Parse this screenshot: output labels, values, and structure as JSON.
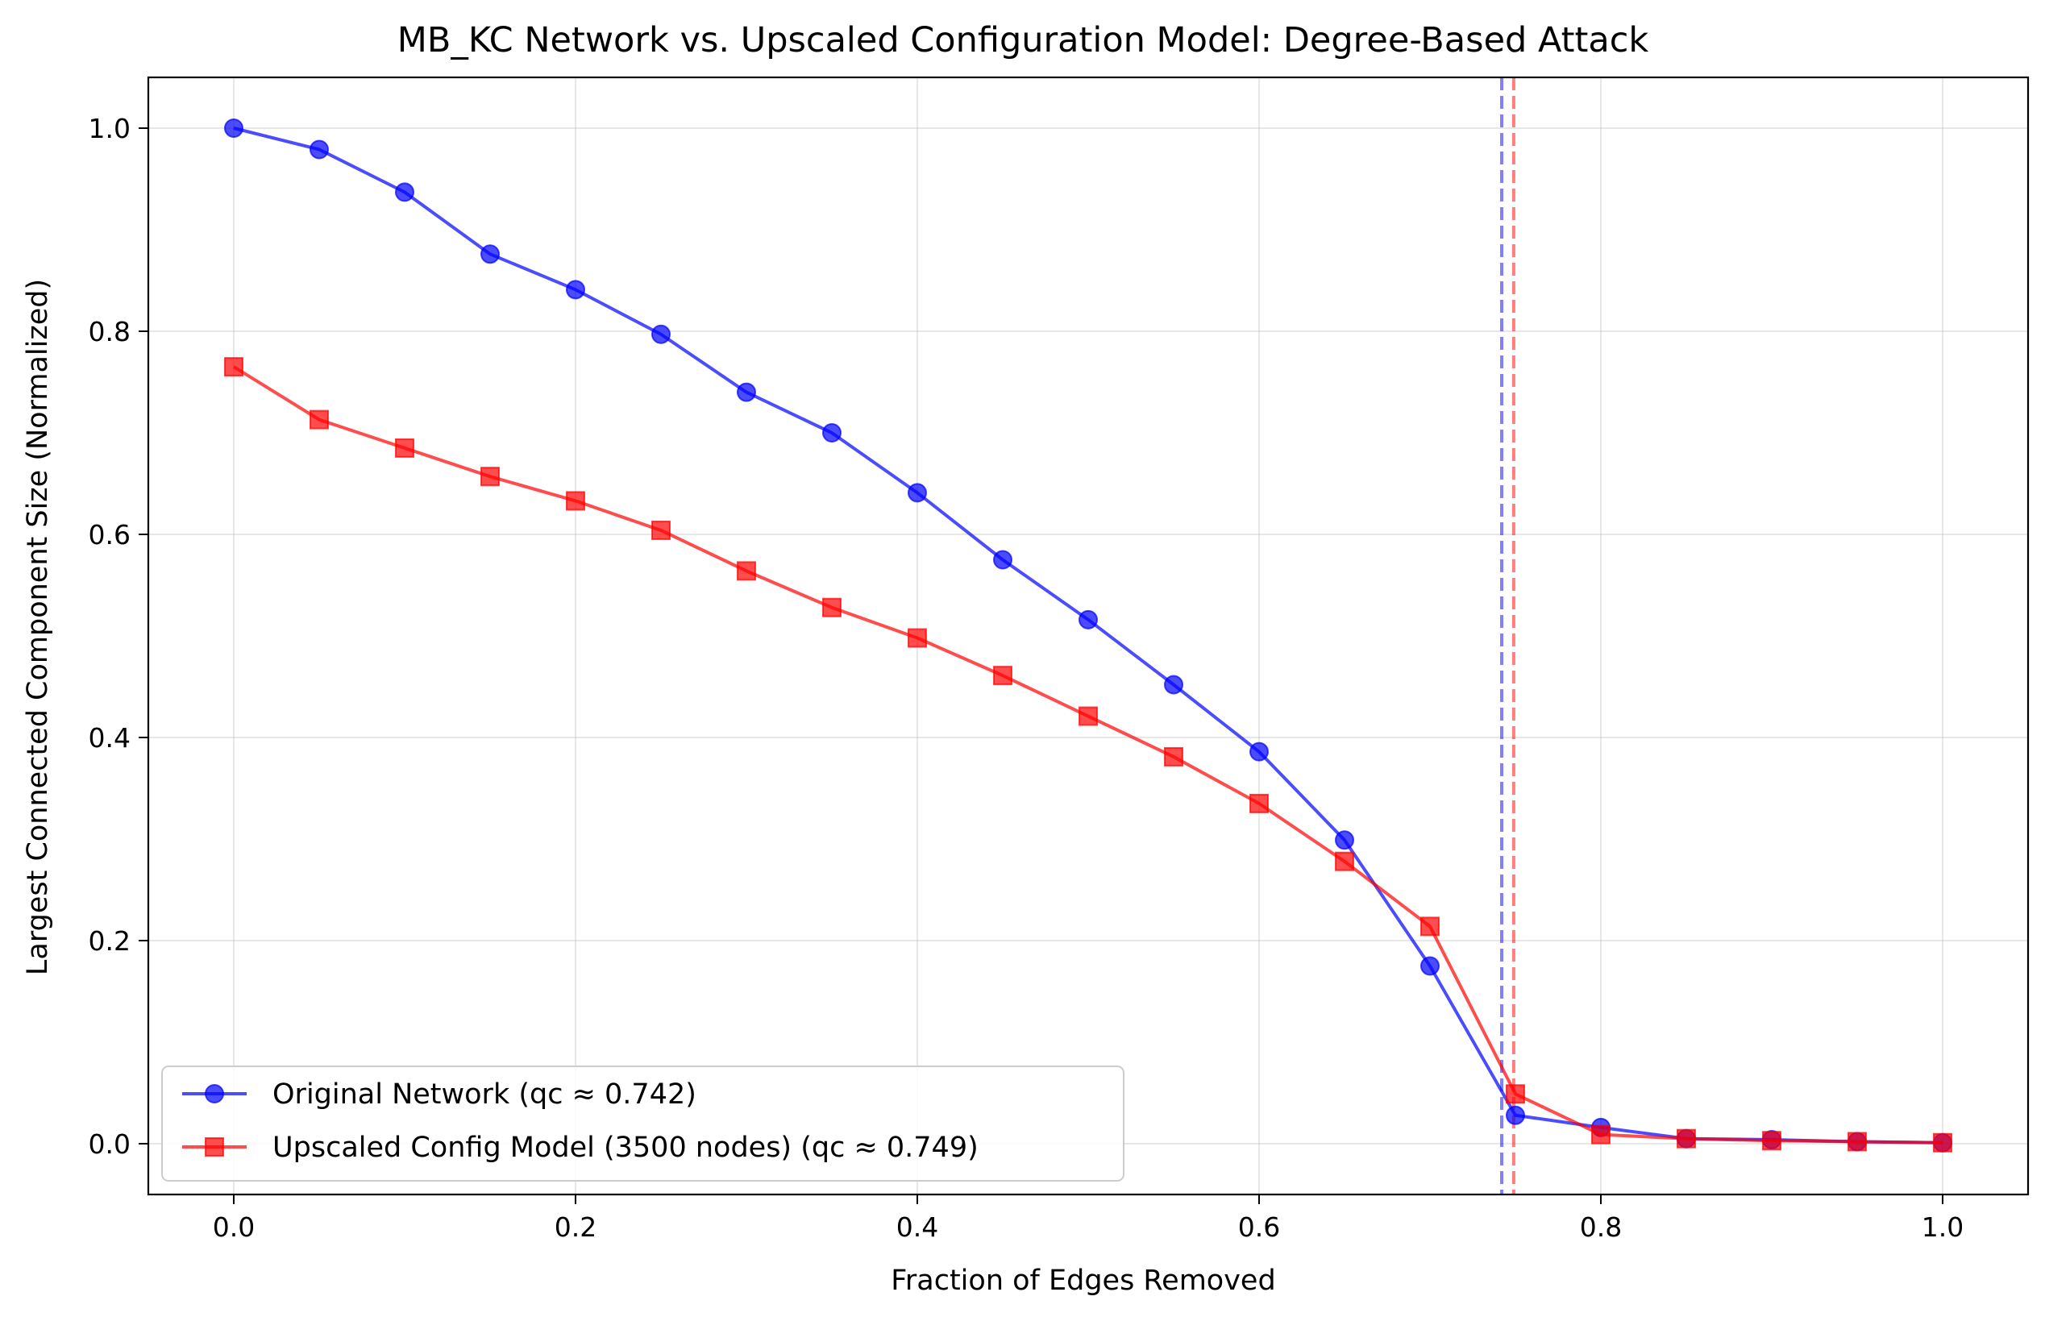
{
  "chart_data": {
    "type": "line",
    "title": "MB_KC Network vs. Upscaled Configuration Model: Degree-Based Attack",
    "xlabel": "Fraction of Edges Removed",
    "ylabel": "Largest Connected Component Size (Normalized)",
    "xlim": [
      -0.05,
      1.05
    ],
    "ylim": [
      -0.05,
      1.05
    ],
    "xticks": [
      0.0,
      0.2,
      0.4,
      0.6,
      0.8,
      1.0
    ],
    "xtick_labels": [
      "0.0",
      "0.2",
      "0.4",
      "0.6",
      "0.8",
      "1.0"
    ],
    "yticks": [
      0.0,
      0.2,
      0.4,
      0.6,
      0.8,
      1.0
    ],
    "ytick_labels": [
      "0.0",
      "0.2",
      "0.4",
      "0.6",
      "0.8",
      "1.0"
    ],
    "grid": true,
    "legend_position": "lower-left",
    "x": [
      0.0,
      0.05,
      0.1,
      0.15,
      0.2,
      0.25,
      0.3,
      0.35,
      0.4,
      0.45,
      0.5,
      0.55,
      0.6,
      0.65,
      0.7,
      0.75,
      0.8,
      0.85,
      0.9,
      0.95,
      1.0
    ],
    "series": [
      {
        "name": "Original Network (qc ≈ 0.742)",
        "color": "#0000ff",
        "marker": "circle",
        "values": [
          1.0,
          0.979,
          0.937,
          0.876,
          0.841,
          0.797,
          0.74,
          0.7,
          0.641,
          0.575,
          0.516,
          0.452,
          0.386,
          0.299,
          0.175,
          0.028,
          0.016,
          0.005,
          0.004,
          0.002,
          0.001
        ]
      },
      {
        "name": "Upscaled Config Model (3500 nodes) (qc ≈ 0.749)",
        "color": "#ff0000",
        "marker": "square",
        "values": [
          0.765,
          0.713,
          0.685,
          0.657,
          0.633,
          0.604,
          0.564,
          0.528,
          0.498,
          0.461,
          0.421,
          0.381,
          0.335,
          0.278,
          0.214,
          0.049,
          0.009,
          0.005,
          0.003,
          0.002,
          0.001
        ]
      }
    ],
    "vlines": [
      {
        "x": 0.742,
        "color": "#0000ff",
        "style": "dashed"
      },
      {
        "x": 0.749,
        "color": "#ff0000",
        "style": "dashed"
      }
    ]
  }
}
